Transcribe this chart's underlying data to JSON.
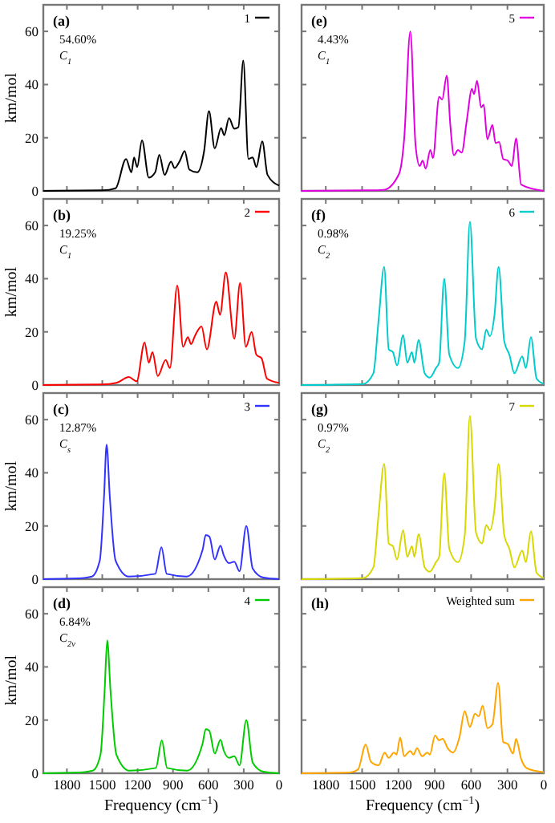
{
  "chart_data": [
    {
      "type": "line",
      "title": "(a)",
      "annotations": [
        "54.60%",
        "C$_{1}$"
      ],
      "ylabel": "km/mol",
      "xlim": [
        2000,
        0
      ],
      "xticks": [
        1800,
        1500,
        1200,
        900,
        600,
        300,
        0
      ],
      "ylim": [
        0,
        70
      ],
      "yticks": [
        0,
        20,
        40,
        60
      ],
      "tick_labels": "y",
      "legend": "top right",
      "series": [
        {
          "name": "1",
          "color": "#000000",
          "x": [
            2000,
            1500,
            1387,
            1298,
            1253,
            1230,
            1204,
            1163,
            1105,
            1051,
            1016,
            971,
            917,
            886,
            841,
            801,
            761,
            694,
            636,
            595,
            546,
            492,
            465,
            425,
            380,
            345,
            304,
            260,
            224,
            193,
            143,
            98,
            0
          ],
          "values": [
            0,
            0.2,
            1,
            12,
            7,
            12.6,
            9,
            19,
            5,
            7,
            13.6,
            6,
            11,
            8.6,
            11.4,
            15,
            8,
            7,
            15,
            30,
            16,
            23.6,
            21,
            27.4,
            23.4,
            24,
            49,
            12,
            12.6,
            9,
            18.6,
            6,
            2
          ]
        }
      ]
    },
    {
      "type": "line",
      "title": "(b)",
      "annotations": [
        "19.25%",
        "C$_{1}$"
      ],
      "ylabel": "km/mol",
      "xlim": [
        2000,
        0
      ],
      "xticks": [
        1800,
        1500,
        1200,
        900,
        600,
        300,
        0
      ],
      "ylim": [
        0,
        70
      ],
      "yticks": [
        0,
        20,
        40,
        60
      ],
      "tick_labels": "y",
      "legend": "top right",
      "series": [
        {
          "name": "2",
          "color": "#ff0000",
          "x": [
            2000,
            1500,
            1380,
            1275,
            1208,
            1141,
            1105,
            1074,
            1029,
            962,
            926,
            864,
            814,
            774,
            747,
            711,
            658,
            613,
            533,
            501,
            452,
            380,
            331,
            282,
            233,
            193,
            148,
            103,
            0
          ],
          "values": [
            0,
            0.2,
            0.8,
            3,
            1.4,
            16,
            8.4,
            12.4,
            3.4,
            9.4,
            6.4,
            37.4,
            14.4,
            18,
            15.4,
            18.8,
            22,
            13.4,
            31.4,
            26.4,
            42.4,
            17.4,
            38.4,
            14.4,
            20,
            11.4,
            10,
            2.4,
            0.8
          ]
        }
      ]
    },
    {
      "type": "line",
      "title": "(c)",
      "annotations": [
        "12.87%",
        "C$_{s}$"
      ],
      "ylabel": "km/mol",
      "xlim": [
        2000,
        0
      ],
      "xticks": [
        1800,
        1500,
        1200,
        900,
        600,
        300,
        0
      ],
      "ylim": [
        0,
        70
      ],
      "yticks": [
        0,
        20,
        40,
        60
      ],
      "tick_labels": "y",
      "legend": "top right",
      "series": [
        {
          "name": "3",
          "color": "#3333ff",
          "x": [
            2000,
            1700,
            1588,
            1521,
            1485,
            1463,
            1436,
            1387,
            1275,
            1051,
            998,
            953,
            783,
            649,
            622,
            591,
            546,
            497,
            470,
            425,
            380,
            336,
            278,
            224,
            134,
            0
          ],
          "values": [
            0,
            0.3,
            1,
            7,
            31,
            50.6,
            31,
            7,
            1,
            2,
            12,
            2,
            1,
            11,
            16.6,
            16,
            7.4,
            12.6,
            9,
            6,
            6.6,
            3,
            20,
            4,
            0.6,
            0
          ]
        }
      ]
    },
    {
      "type": "line",
      "title": "(d)",
      "annotations": [
        "6.84%",
        "C$_{2v}$"
      ],
      "ylabel": "km/mol",
      "xlabel": "Frequency (cm$^{−1}$)",
      "xlim": [
        2000,
        0
      ],
      "xticks": [
        1800,
        1500,
        1200,
        900,
        600,
        300,
        0
      ],
      "ylim": [
        0,
        70
      ],
      "yticks": [
        0,
        20,
        40,
        60
      ],
      "legend": "top right",
      "series": [
        {
          "name": "4",
          "color": "#00cc00",
          "x": [
            2000,
            1700,
            1580,
            1515,
            1480,
            1458,
            1430,
            1380,
            1270,
            1045,
            995,
            950,
            780,
            650,
            622,
            592,
            546,
            497,
            470,
            425,
            380,
            336,
            278,
            224,
            134,
            0
          ],
          "values": [
            0,
            0.3,
            1,
            7,
            31,
            50,
            31,
            7,
            1,
            2,
            12.4,
            2,
            1,
            11,
            16.6,
            16,
            7.4,
            12.6,
            8.6,
            5.8,
            6.4,
            3,
            20,
            4,
            0.6,
            0
          ]
        }
      ]
    },
    {
      "type": "line",
      "title": "(e)",
      "annotations": [
        "4.43%",
        "C$_{1}$"
      ],
      "xlim": [
        2000,
        0
      ],
      "xticks": [
        1800,
        1500,
        1200,
        900,
        600,
        300,
        0
      ],
      "ylim": [
        0,
        70
      ],
      "yticks": [
        0,
        20,
        40,
        60
      ],
      "tick_labels": false,
      "legend": "top right",
      "series": [
        {
          "name": "5",
          "color": "#e000e0",
          "x": [
            2000,
            1450,
            1322,
            1195,
            1153,
            1102,
            1059,
            1025,
            1000,
            975,
            937,
            915,
            864,
            839,
            801,
            771,
            742,
            708,
            678,
            636,
            593,
            576,
            551,
            517,
            496,
            466,
            424,
            398,
            369,
            335,
            297,
            263,
            229,
            187,
            0
          ],
          "values": [
            0,
            0.2,
            0.4,
            6.4,
            19.4,
            60,
            17.4,
            9.4,
            11.4,
            8.4,
            15.4,
            12.4,
            35.4,
            34.4,
            43.4,
            24.4,
            13.4,
            15.4,
            14.4,
            26.4,
            38.4,
            36.4,
            41.4,
            31.4,
            32.4,
            19.4,
            24.8,
            18,
            18.4,
            12,
            11.4,
            9.4,
            19.8,
            2.4,
            0
          ]
        }
      ]
    },
    {
      "type": "line",
      "title": "(f)",
      "annotations": [
        "0.98%",
        "C$_{2}$"
      ],
      "xlim": [
        2000,
        0
      ],
      "xticks": [
        1800,
        1500,
        1200,
        900,
        600,
        300,
        0
      ],
      "ylim": [
        0,
        70
      ],
      "yticks": [
        0,
        20,
        40,
        60
      ],
      "tick_labels": false,
      "legend": "top right",
      "series": [
        {
          "name": "6",
          "color": "#00cccc",
          "x": [
            2000,
            1492,
            1407,
            1364,
            1318,
            1280,
            1246,
            1212,
            1161,
            1127,
            1089,
            1068,
            1034,
            983,
            941,
            890,
            864,
            822,
            780,
            708,
            653,
            610,
            559,
            509,
            475,
            445,
            407,
            373,
            326,
            284,
            242,
            178,
            148,
            106,
            59,
            0
          ],
          "values": [
            0,
            0.4,
            4.4,
            24.4,
            44.4,
            13.4,
            12.4,
            7.4,
            18.8,
            8.4,
            12.4,
            8.4,
            17,
            4.4,
            2.8,
            6.4,
            8.4,
            40,
            11.4,
            6.4,
            16.4,
            61.4,
            17.4,
            13.4,
            20.8,
            18.4,
            26.4,
            44.4,
            16.4,
            11.4,
            4.4,
            10.8,
            6.4,
            18,
            2.4,
            0.4
          ]
        }
      ]
    },
    {
      "type": "line",
      "title": "(g)",
      "annotations": [
        "0.97%",
        "C$_{2}$"
      ],
      "xlim": [
        2000,
        0
      ],
      "xticks": [
        1800,
        1500,
        1200,
        900,
        600,
        300,
        0
      ],
      "ylim": [
        0,
        70
      ],
      "yticks": [
        0,
        20,
        40,
        60
      ],
      "tick_labels": false,
      "legend": "top right",
      "series": [
        {
          "name": "7",
          "color": "#d8d800",
          "x": [
            2000,
            1492,
            1407,
            1364,
            1318,
            1280,
            1246,
            1212,
            1161,
            1127,
            1089,
            1068,
            1034,
            983,
            941,
            890,
            864,
            822,
            780,
            708,
            653,
            610,
            559,
            509,
            475,
            445,
            407,
            373,
            326,
            284,
            242,
            178,
            148,
            106,
            59,
            0
          ],
          "values": [
            0,
            0.4,
            4.4,
            24.4,
            43.4,
            13.4,
            12.4,
            7.4,
            18.4,
            8.4,
            12.4,
            8.4,
            17,
            4.4,
            2.8,
            6.4,
            8.4,
            39.8,
            11.4,
            6.4,
            16.4,
            61.4,
            17.4,
            13.4,
            20.4,
            18.4,
            26.4,
            43.4,
            16.4,
            11.4,
            4.4,
            10.8,
            6.4,
            18,
            2.4,
            0.4
          ]
        }
      ]
    },
    {
      "type": "line",
      "title": "(h)",
      "xlabel": "Frequency (cm$^{−1}$)",
      "xlim": [
        2000,
        0
      ],
      "xticks": [
        1800,
        1500,
        1200,
        900,
        600,
        300,
        0
      ],
      "ylim": [
        0,
        70
      ],
      "yticks": [
        0,
        20,
        40,
        60
      ],
      "tick_labels": "x",
      "legend": "top right",
      "series": [
        {
          "name": "Weighted sum",
          "color": "#ffa500",
          "x": [
            2000,
            1600,
            1534,
            1470,
            1428,
            1364,
            1314,
            1280,
            1237,
            1216,
            1186,
            1153,
            1102,
            1076,
            1047,
            1004,
            962,
            941,
            898,
            864,
            835,
            793,
            750,
            695,
            653,
            610,
            568,
            538,
            504,
            466,
            424,
            377,
            335,
            297,
            254,
            229,
            187,
            136,
            0
          ],
          "values": [
            0,
            0.3,
            1.4,
            10.8,
            4.4,
            3,
            7.8,
            5.8,
            7.8,
            7,
            13.4,
            6.4,
            8.4,
            7,
            9.4,
            6.4,
            7.8,
            7,
            14.2,
            12.4,
            13,
            9.4,
            7.8,
            13.8,
            23.4,
            17.4,
            22.4,
            21.4,
            25.4,
            17,
            18.4,
            34,
            11.8,
            11,
            7.4,
            13,
            5.4,
            1.8,
            0.4
          ]
        }
      ]
    }
  ]
}
